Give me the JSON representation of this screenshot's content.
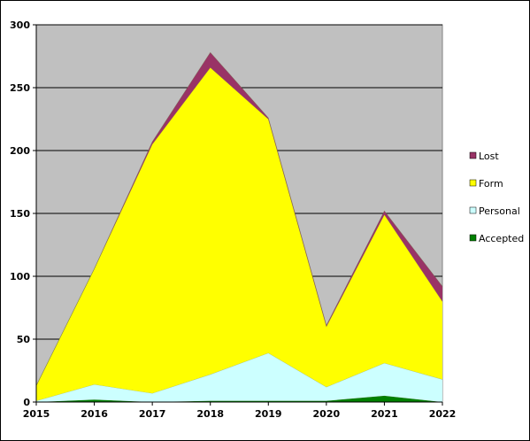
{
  "chart_data": {
    "type": "area",
    "stacked": true,
    "x": [
      2015,
      2016,
      2017,
      2018,
      2019,
      2020,
      2021,
      2022
    ],
    "x_tick_labels": [
      "2015",
      "2016",
      "2017",
      "2018",
      "2019",
      "2020",
      "2021",
      "2022"
    ],
    "y_tick_labels": [
      "0",
      "50",
      "100",
      "150",
      "200",
      "250",
      "300"
    ],
    "ylim": [
      0,
      300
    ],
    "grid": true,
    "plot_background": "#c0c0c0",
    "legend_position": "right",
    "series": [
      {
        "name": "Accepted",
        "color": "#008000",
        "values": [
          0,
          2,
          0,
          1,
          1,
          1,
          5,
          0
        ]
      },
      {
        "name": "Personal",
        "color": "#ccffff",
        "values": [
          1,
          12,
          7,
          21,
          38,
          11,
          26,
          18
        ]
      },
      {
        "name": "Form",
        "color": "#ffff00",
        "values": [
          12,
          92,
          198,
          244,
          186,
          48,
          118,
          62
        ]
      },
      {
        "name": "Lost",
        "color": "#993366",
        "values": [
          0,
          0,
          2,
          12,
          1,
          1,
          3,
          12
        ]
      }
    ],
    "legend_order": [
      "Lost",
      "Form",
      "Personal",
      "Accepted"
    ]
  }
}
